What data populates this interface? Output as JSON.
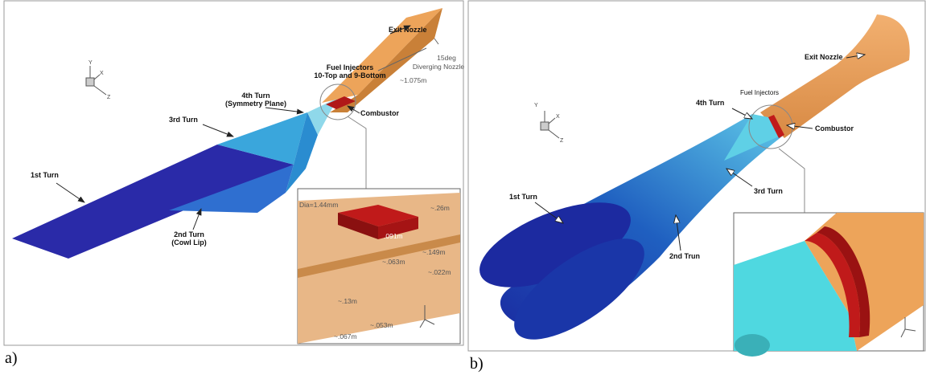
{
  "panel_a": {
    "label": "a)",
    "exit_nozzle": "Exit Nozzle",
    "nozzle_angle": [
      "15deg",
      "Diverging Nozzle"
    ],
    "length": "~1.075m",
    "fuel_injectors": [
      "Fuel Injectors",
      "10-Top and 9-Bottom"
    ],
    "turn4": [
      "4th Turn",
      "(Symmetry Plane)"
    ],
    "combustor": "Combustor",
    "turn3": "3rd Turn",
    "turn1": "1st Turn",
    "turn2": [
      "2nd Turn",
      "(Cowl Lip)"
    ],
    "axes": {
      "y": "Y",
      "x": "X",
      "z": "Z"
    },
    "inset": {
      "diameter": "Dia=1.44mm",
      "dims": [
        "~.26m",
        ".091m",
        "~.149m",
        "~.063m",
        "~.022m",
        "~.13m",
        "~.053m",
        "~.067m"
      ]
    }
  },
  "panel_b": {
    "label": "b)",
    "exit_nozzle": "Exit Nozzle",
    "fuel_injectors": "Fuel Injectors",
    "turn4": "4th Turn",
    "combustor": "Combustor",
    "turn3": "3rd Turn",
    "turn1": "1st Turn",
    "turn2": "2nd Trun",
    "axes": {
      "y": "Y",
      "x": "X",
      "z": "Z"
    }
  }
}
